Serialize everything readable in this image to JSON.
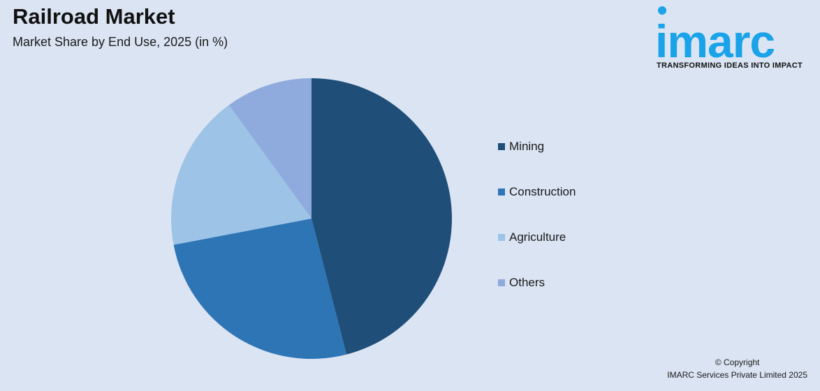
{
  "header": {
    "title": "Railroad Market",
    "subtitle": "Market Share by End Use, 2025 (in %)"
  },
  "brand": {
    "logo_text": "imarc",
    "tagline": "TRANSFORMING IDEAS INTO IMPACT",
    "color": "#1aa3e8"
  },
  "chart_data": {
    "type": "pie",
    "title": "Railroad Market",
    "subtitle": "Market Share by End Use, 2025 (in %)",
    "start_angle_deg": 0,
    "direction": "clockwise",
    "legend_position": "right",
    "slices": [
      {
        "label": "Mining",
        "value": 46,
        "color": "#1f4e79"
      },
      {
        "label": "Construction",
        "value": 26,
        "color": "#2e75b6"
      },
      {
        "label": "Agriculture",
        "value": 18,
        "color": "#9dc3e6"
      },
      {
        "label": "Others",
        "value": 10,
        "color": "#8faadc"
      }
    ]
  },
  "footer": {
    "copyright_line1": "© Copyright",
    "copyright_line2": "IMARC Services Private Limited 2025"
  }
}
